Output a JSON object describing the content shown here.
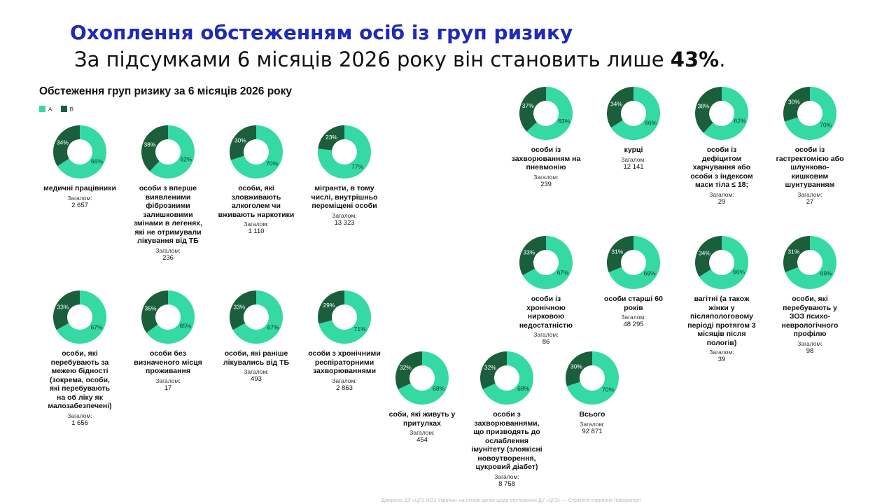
{
  "heading": "Охоплення обстеженням осіб із груп ризику",
  "subheading_text": "За підсумками 6 місяців 2026 року він становить лише ",
  "subheading_emphasis": "43%",
  "subheading_end": ".",
  "footer_text": "Джерело: ДУ «ЦГЗ МОЗ України» на основі даних щодо обстеження ДУ «ЦГЗ» — Стратегія сприяння Лабораторії",
  "chart_data": {
    "type": "pie",
    "title": "Обстеження груп ризику за 6 місяців 2026 року",
    "legend": [
      "A",
      "B"
    ],
    "total_label": "Загалом:",
    "colors": {
      "A": "#34d9a4",
      "B": "#1b5e3c"
    },
    "groups": [
      {
        "label": "медичні працівники",
        "A": 66,
        "B": 34,
        "total": "2 657"
      },
      {
        "label": "особи з вперше виявленими фіброзними залишковими змінами в легенях, які не отримували лікування від ТБ",
        "A": 62,
        "B": 38,
        "total": "236"
      },
      {
        "label": "особи, які зловживають алкоголем чи вживають наркотики",
        "A": 70,
        "B": 30,
        "total": "1 110"
      },
      {
        "label": "мігранти, в тому числі, внутрішньо переміщені особи",
        "A": 77,
        "B": 23,
        "total": "13 323"
      },
      {
        "label": "особи, які перебувають за межею бідності (зокрема, особи, які перебувають на об ліку як малозабезпечені)",
        "A": 67,
        "B": 33,
        "total": "1 656"
      },
      {
        "label": "особи без визначеного місця проживання",
        "A": 65,
        "B": 35,
        "total": "17"
      },
      {
        "label": "особи, які раніше лікувались від ТБ",
        "A": 67,
        "B": 33,
        "total": "493"
      },
      {
        "label": "особи з хронічними респіраторними захворюваннями",
        "A": 71,
        "B": 29,
        "total": "2 863"
      },
      {
        "label": "соби, які живуть у притулках",
        "A": 68,
        "B": 32,
        "total": "454"
      },
      {
        "label": "особи з захворюваннями, що призводять до ослаблення імунітету (злоякісні новоутворення, цукровий діабет)",
        "A": 68,
        "B": 32,
        "total": "8 758"
      },
      {
        "label": "Всього",
        "A": 70,
        "B": 30,
        "total": "92 871"
      },
      {
        "label": "особи із захворюванням на пневмонію",
        "A": 63,
        "B": 37,
        "total": "239"
      },
      {
        "label": "курці",
        "A": 66,
        "B": 34,
        "total": "12 141"
      },
      {
        "label": "особи із дефіцитом харчування або особи з індексом маси тіла ≤ 18;",
        "A": 62,
        "B": 38,
        "total": "29"
      },
      {
        "label": "особи із гастректомією або шлунково-кишковим шунтуванням",
        "A": 70,
        "B": 30,
        "total": "27"
      },
      {
        "label": "особи із хронічною нирковою недостатністю",
        "A": 67,
        "B": 33,
        "total": "86"
      },
      {
        "label": "особи старші 60 років",
        "A": 69,
        "B": 31,
        "total": "48 295"
      },
      {
        "label": "вагітні (а також жінки у післяпологовому періоді протягом 3 місяців після пологів)",
        "A": 66,
        "B": 34,
        "total": "39"
      },
      {
        "label": "особи, які перебувають у ЗОЗ психо-неврологічного профілю",
        "A": 69,
        "B": 31,
        "total": "98"
      }
    ]
  }
}
